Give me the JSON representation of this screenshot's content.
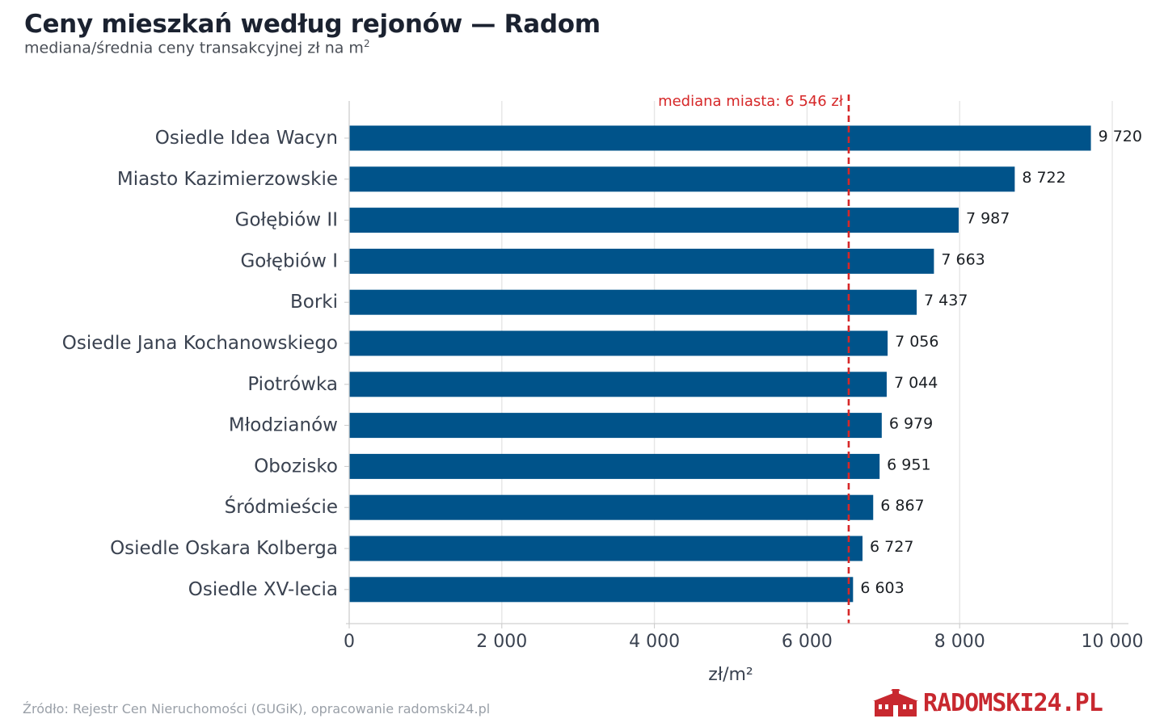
{
  "title": "Ceny mieszkań według rejonów — Radom",
  "subtitle_text": "mediana/średnia ceny transakcyjnej zł na m",
  "subtitle_superscript": "2",
  "source": "Źródło: Rejestr Cen Nieruchomości (GUGiK), opracowanie radomski24.pl",
  "logo": {
    "text": "RADOMSKI24.PL",
    "icon": "town-hall-icon",
    "color": "#c8282f"
  },
  "colors": {
    "bar": "#00538a",
    "reference_line": "#d62728",
    "grid": "#e6e6e6",
    "label": "#3a4250"
  },
  "chart_data": {
    "type": "bar",
    "orientation": "horizontal",
    "categories": [
      "Osiedle Idea Wacyn",
      "Miasto Kazimierzowskie",
      "Gołębiów II",
      "Gołębiów I",
      "Borki",
      "Osiedle Jana Kochanowskiego",
      "Piotrówka",
      "Młodzianów",
      "Obozisko",
      "Śródmieście",
      "Osiedle Oskara Kolberga",
      "Osiedle XV-lecia"
    ],
    "values": [
      9720,
      8722,
      7987,
      7663,
      7437,
      7056,
      7044,
      6979,
      6951,
      6867,
      6727,
      6603
    ],
    "value_labels": [
      "9 720",
      "8 722",
      "7 987",
      "7 663",
      "7 437",
      "7 056",
      "7 044",
      "6 979",
      "6 951",
      "6 867",
      "6 727",
      "6 603"
    ],
    "xlabel": "zł/m²",
    "ylabel": "",
    "xlim": [
      0,
      10000
    ],
    "xticks": [
      0,
      2000,
      4000,
      6000,
      8000,
      10000
    ],
    "xtick_labels": [
      "0",
      "2 000",
      "4 000",
      "6 000",
      "8 000",
      "10 000"
    ],
    "grid": "vertical",
    "reference_line": {
      "value": 6546,
      "label": "mediana miasta: 6 546 zł",
      "style": "dashed"
    }
  }
}
